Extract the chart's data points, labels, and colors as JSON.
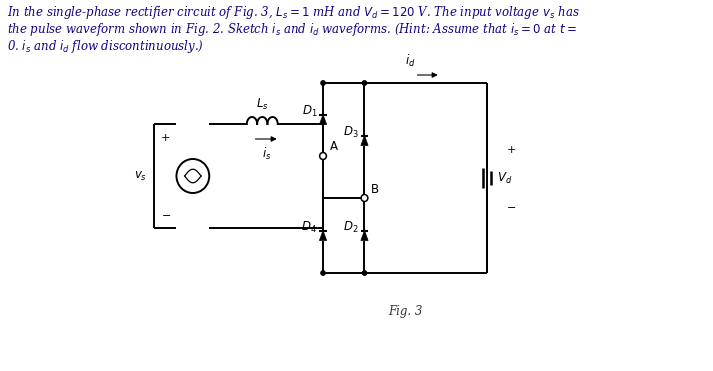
{
  "background_color": "#ffffff",
  "line_color": "#000000",
  "text_color": "#1a0080",
  "fig_label": "Fig. 3"
}
